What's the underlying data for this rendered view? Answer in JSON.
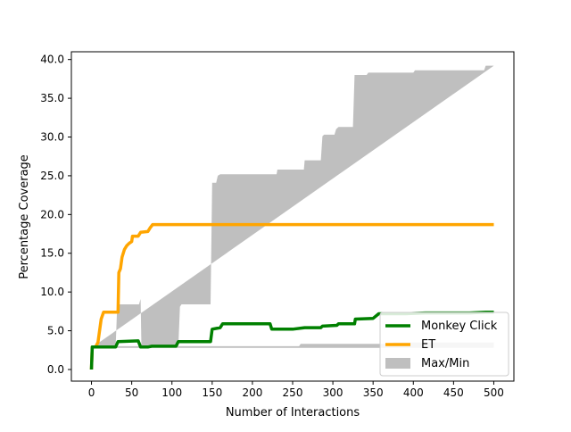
{
  "chart_data": {
    "type": "line",
    "title": "",
    "xlabel": "Number of Interactions",
    "ylabel": "Percentage Coverage",
    "xlim": [
      -25,
      525
    ],
    "ylim": [
      -1.5,
      41.0
    ],
    "x_ticks": [
      0,
      50,
      100,
      150,
      200,
      250,
      300,
      350,
      400,
      450,
      500
    ],
    "x_tick_labels": [
      "0",
      "50",
      "100",
      "150",
      "200",
      "250",
      "300",
      "350",
      "400",
      "450",
      "500"
    ],
    "y_ticks": [
      0,
      5,
      10,
      15,
      20,
      25,
      30,
      35,
      40
    ],
    "y_tick_labels": [
      "0.0",
      "5.0",
      "10.0",
      "15.0",
      "20.0",
      "25.0",
      "30.0",
      "35.0",
      "40.0"
    ],
    "grid": false,
    "legend_position": "lower-right",
    "colors": {
      "monkey": "#008000",
      "et": "#ffa500",
      "band": "#bfbfbf"
    },
    "band": {
      "name": "Max/Min",
      "upper": [
        [
          0,
          2.8
        ],
        [
          30,
          2.8
        ],
        [
          32,
          8.4
        ],
        [
          59,
          8.4
        ],
        [
          61,
          9.1
        ],
        [
          62,
          3.0
        ],
        [
          108,
          3.0
        ],
        [
          110,
          8.1
        ],
        [
          112,
          8.4
        ],
        [
          148,
          8.4
        ],
        [
          150,
          24.1
        ],
        [
          155,
          24.1
        ],
        [
          157,
          25.0
        ],
        [
          160,
          25.2
        ],
        [
          230,
          25.2
        ],
        [
          231,
          25.8
        ],
        [
          264,
          25.8
        ],
        [
          265,
          27.0
        ],
        [
          285,
          27.0
        ],
        [
          287,
          30.1
        ],
        [
          289,
          30.3
        ],
        [
          302,
          30.3
        ],
        [
          304,
          31.0
        ],
        [
          307,
          31.3
        ],
        [
          325,
          31.3
        ],
        [
          327,
          38.0
        ],
        [
          342,
          38.0
        ],
        [
          344,
          38.3
        ],
        [
          400,
          38.3
        ],
        [
          402,
          38.6
        ],
        [
          488,
          38.6
        ],
        [
          490,
          39.2
        ],
        [
          500,
          39.2
        ]
      ],
      "lower": [
        [
          0,
          2.8
        ],
        [
          500,
          2.8
        ],
        [
          500,
          3.5
        ],
        [
          375,
          3.5
        ],
        [
          373,
          3.3
        ],
        [
          260,
          3.3
        ],
        [
          258,
          3.0
        ],
        [
          0,
          3.0
        ]
      ]
    },
    "series": [
      {
        "name": "Monkey Click",
        "points": [
          [
            0,
            0
          ],
          [
            1,
            2.9
          ],
          [
            30,
            2.9
          ],
          [
            33,
            3.6
          ],
          [
            58,
            3.7
          ],
          [
            61,
            2.9
          ],
          [
            70,
            2.9
          ],
          [
            75,
            3.0
          ],
          [
            105,
            3.0
          ],
          [
            108,
            3.6
          ],
          [
            148,
            3.6
          ],
          [
            150,
            5.2
          ],
          [
            160,
            5.4
          ],
          [
            163,
            5.9
          ],
          [
            222,
            5.9
          ],
          [
            224,
            5.2
          ],
          [
            250,
            5.2
          ],
          [
            265,
            5.4
          ],
          [
            285,
            5.4
          ],
          [
            287,
            5.6
          ],
          [
            305,
            5.7
          ],
          [
            307,
            5.9
          ],
          [
            327,
            5.9
          ],
          [
            328,
            6.5
          ],
          [
            350,
            6.6
          ],
          [
            357,
            7.2
          ],
          [
            390,
            7.2
          ],
          [
            415,
            7.3
          ],
          [
            470,
            7.3
          ],
          [
            490,
            7.4
          ],
          [
            500,
            7.4
          ]
        ]
      },
      {
        "name": "ET",
        "points": [
          [
            0,
            0
          ],
          [
            1,
            2.9
          ],
          [
            5,
            2.9
          ],
          [
            8,
            3.5
          ],
          [
            12,
            6.5
          ],
          [
            15,
            7.4
          ],
          [
            33,
            7.4
          ],
          [
            34,
            12.5
          ],
          [
            36,
            13.0
          ],
          [
            38,
            14.5
          ],
          [
            41,
            15.5
          ],
          [
            44,
            16.0
          ],
          [
            47,
            16.3
          ],
          [
            50,
            16.5
          ],
          [
            51,
            17.2
          ],
          [
            58,
            17.2
          ],
          [
            61,
            17.7
          ],
          [
            70,
            17.8
          ],
          [
            73,
            18.3
          ],
          [
            76,
            18.7
          ],
          [
            500,
            18.7
          ]
        ]
      }
    ]
  }
}
